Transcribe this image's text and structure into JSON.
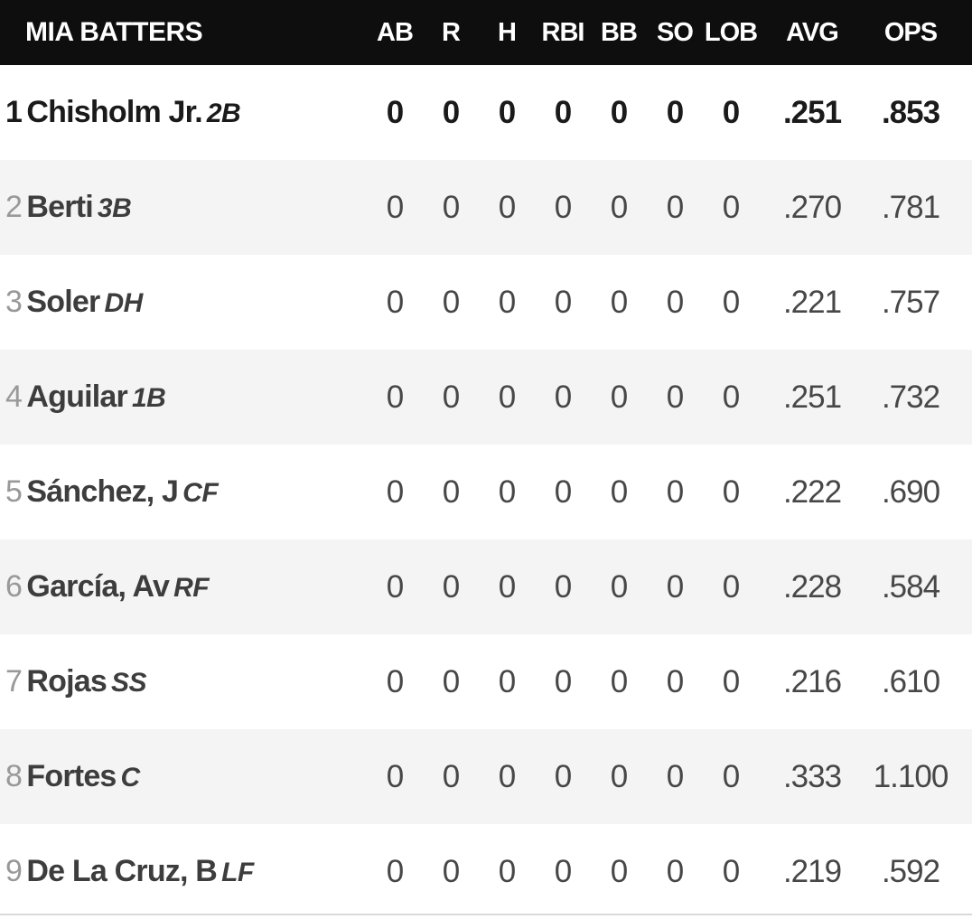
{
  "header": {
    "title": "MIA BATTERS",
    "columns": [
      "AB",
      "R",
      "H",
      "RBI",
      "BB",
      "SO",
      "LOB",
      "AVG",
      "OPS"
    ]
  },
  "players": [
    {
      "order": "1",
      "name": "Chisholm Jr.",
      "position": "2B",
      "active": true,
      "stats": [
        "0",
        "0",
        "0",
        "0",
        "0",
        "0",
        "0",
        ".251",
        ".853"
      ]
    },
    {
      "order": "2",
      "name": "Berti",
      "position": "3B",
      "active": false,
      "stats": [
        "0",
        "0",
        "0",
        "0",
        "0",
        "0",
        "0",
        ".270",
        ".781"
      ]
    },
    {
      "order": "3",
      "name": "Soler",
      "position": "DH",
      "active": false,
      "stats": [
        "0",
        "0",
        "0",
        "0",
        "0",
        "0",
        "0",
        ".221",
        ".757"
      ]
    },
    {
      "order": "4",
      "name": "Aguilar",
      "position": "1B",
      "active": false,
      "stats": [
        "0",
        "0",
        "0",
        "0",
        "0",
        "0",
        "0",
        ".251",
        ".732"
      ]
    },
    {
      "order": "5",
      "name": "Sánchez, J",
      "position": "CF",
      "active": false,
      "stats": [
        "0",
        "0",
        "0",
        "0",
        "0",
        "0",
        "0",
        ".222",
        ".690"
      ]
    },
    {
      "order": "6",
      "name": "García, Av",
      "position": "RF",
      "active": false,
      "stats": [
        "0",
        "0",
        "0",
        "0",
        "0",
        "0",
        "0",
        ".228",
        ".584"
      ]
    },
    {
      "order": "7",
      "name": "Rojas",
      "position": "SS",
      "active": false,
      "stats": [
        "0",
        "0",
        "0",
        "0",
        "0",
        "0",
        "0",
        ".216",
        ".610"
      ]
    },
    {
      "order": "8",
      "name": "Fortes",
      "position": "C",
      "active": false,
      "stats": [
        "0",
        "0",
        "0",
        "0",
        "0",
        "0",
        "0",
        ".333",
        "1.100"
      ]
    },
    {
      "order": "9",
      "name": "De La Cruz, B",
      "position": "LF",
      "active": false,
      "stats": [
        "0",
        "0",
        "0",
        "0",
        "0",
        "0",
        "0",
        ".219",
        ".592"
      ]
    }
  ],
  "colors": {
    "header_bg": "#0e0e0e",
    "header_text": "#ffffff",
    "row_bg": "#ffffff",
    "row_alt_bg": "#f4f4f4",
    "active_text": "#1a1a1a",
    "index_text": "#999999",
    "name_text": "#3d3d3d",
    "stat_text": "#474747",
    "bottom_border": "#d9d9d9"
  }
}
